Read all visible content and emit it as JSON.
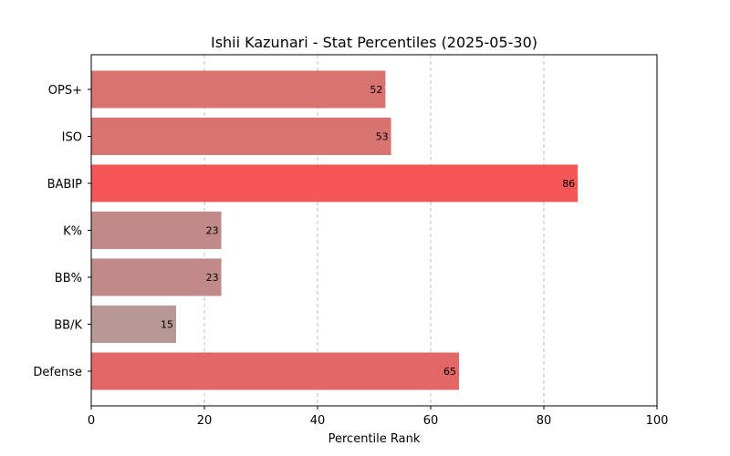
{
  "chart_data": {
    "type": "bar",
    "orientation": "horizontal",
    "title": "Ishii Kazunari - Stat Percentiles (2025-05-30)",
    "xlabel": "Percentile Rank",
    "ylabel": "",
    "xlim": [
      0,
      100
    ],
    "xticks": [
      0,
      20,
      40,
      60,
      80,
      100
    ],
    "grid": "x-dashed",
    "categories": [
      "OPS+",
      "ISO",
      "BABIP",
      "K%",
      "BB%",
      "BB/K",
      "Defense"
    ],
    "values": [
      52,
      53,
      86,
      23,
      23,
      15,
      65
    ],
    "colors": [
      "#d97370",
      "#d97370",
      "#f55759",
      "#c08a88",
      "#c08a88",
      "#b89896",
      "#e36767"
    ]
  }
}
